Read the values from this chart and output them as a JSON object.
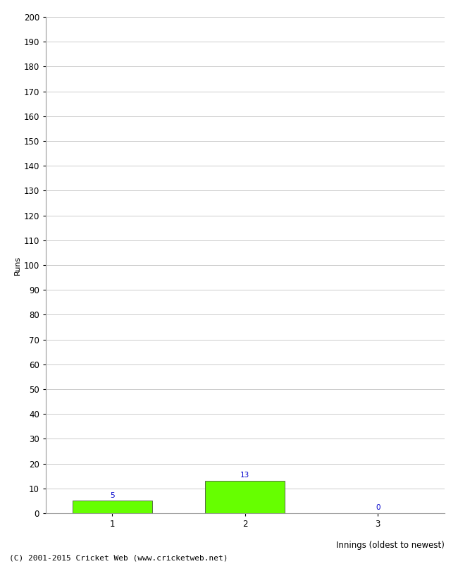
{
  "categories": [
    1,
    2,
    3
  ],
  "values": [
    5,
    13,
    0
  ],
  "bar_color": "#66ff00",
  "bar_edge_color": "#333333",
  "ylabel": "Runs",
  "xlabel": "Innings (oldest to newest)",
  "ylim": [
    0,
    200
  ],
  "yticks": [
    0,
    10,
    20,
    30,
    40,
    50,
    60,
    70,
    80,
    90,
    100,
    110,
    120,
    130,
    140,
    150,
    160,
    170,
    180,
    190,
    200
  ],
  "annotation_color": "#0000cc",
  "annotation_fontsize": 7.5,
  "footer": "(C) 2001-2015 Cricket Web (www.cricketweb.net)",
  "footer_fontsize": 8,
  "background_color": "#ffffff",
  "grid_color": "#cccccc",
  "xlabel_fontsize": 8.5,
  "ylabel_fontsize": 8,
  "tick_fontsize": 8.5,
  "bar_width": 0.6
}
